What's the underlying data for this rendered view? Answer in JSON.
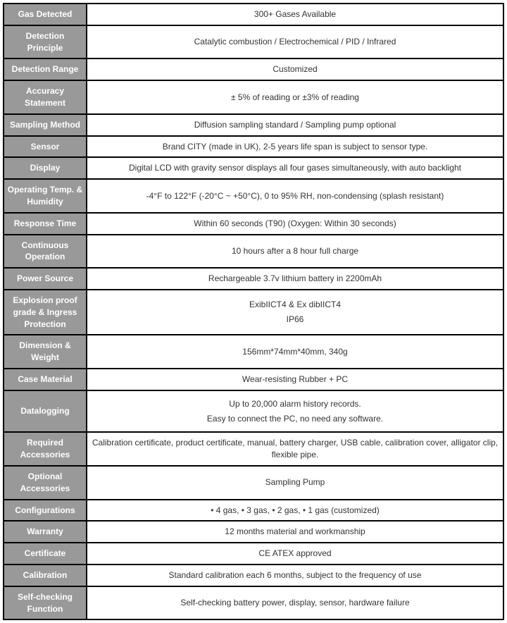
{
  "table": {
    "label_bg": "#999999",
    "label_color": "#ffffff",
    "value_bg": "#ffffff",
    "value_color": "#333333",
    "border_color": "#000000",
    "font_size": 12,
    "rows": [
      {
        "label": "Gas Detected",
        "value": "300+ Gases Available"
      },
      {
        "label": "Detection Principle",
        "value": "Catalytic combustion / Electrochemical / PID / Infrared"
      },
      {
        "label": "Detection Range",
        "value": "Customized"
      },
      {
        "label": "Accuracy Statement",
        "value": "± 5% of reading or ±3% of reading"
      },
      {
        "label": "Sampling Method",
        "value": "Diffusion sampling standard / Sampling pump optional"
      },
      {
        "label": "Sensor",
        "value": "Brand CITY (made in UK), 2-5 years life span is subject to sensor type."
      },
      {
        "label": "Display",
        "value": "Digital LCD with gravity sensor displays all four gases simultaneously, with auto backlight"
      },
      {
        "label": "Operating Temp. & Humidity",
        "value": "-4°F to 122°F (-20°C ~ +50°C), 0 to 95% RH, non-condensing (splash resistant)"
      },
      {
        "label": "Response Time",
        "value": "Within 60 seconds (T90) (Oxygen: Within 30 seconds)"
      },
      {
        "label": "Continuous Operation",
        "value": "10 hours after a 8 hour full charge"
      },
      {
        "label": "Power Source",
        "value": "Rechargeable 3.7v lithium battery in 2200mAh"
      },
      {
        "label": "Explosion proof grade & Ingress Protection",
        "value_lines": [
          "ExibIICT4 & Ex dibIICT4",
          "IP66"
        ]
      },
      {
        "label": "Dimension & Weight",
        "value": "156mm*74mm*40mm, 340g"
      },
      {
        "label": "Case Material",
        "value": "Wear-resisting Rubber + PC"
      },
      {
        "label": "Datalogging",
        "value_lines": [
          "Up to 20,000 alarm history records.",
          "Easy to connect the PC, no need any software."
        ]
      },
      {
        "label": "Required Accessories",
        "value": "Calibration certificate, product certificate, manual, battery charger, USB cable, calibration cover, alligator clip, flexible pipe."
      },
      {
        "label": "Optional Accessories",
        "value": "Sampling Pump"
      },
      {
        "label": "Configurations",
        "value": "• 4 gas, • 3 gas, • 2 gas, • 1 gas  (customized)"
      },
      {
        "label": "Warranty",
        "value": "12 months material and workmanship"
      },
      {
        "label": "Certificate",
        "value": "CE ATEX approved"
      },
      {
        "label": "Calibration",
        "value": "Standard calibration each 6 months, subject to the frequency of use"
      },
      {
        "label": "Self-checking Function",
        "value": "Self-checking battery power, display, sensor, hardware failure"
      }
    ]
  }
}
